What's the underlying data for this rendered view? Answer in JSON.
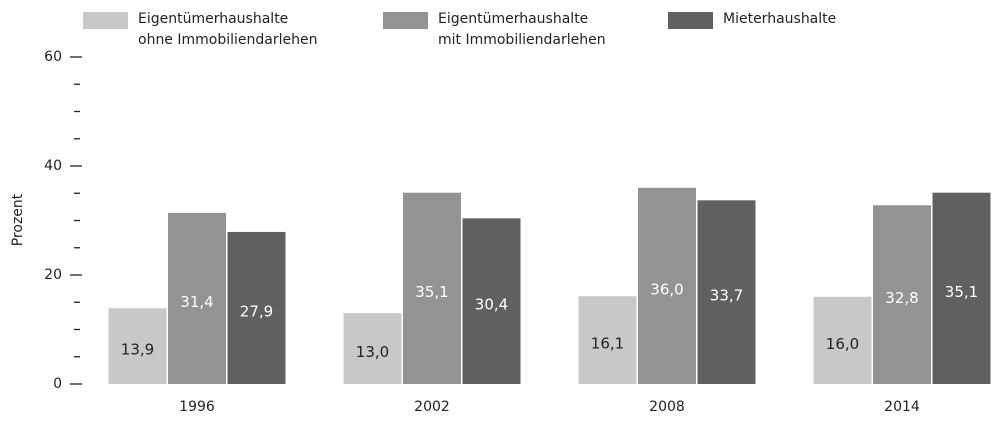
{
  "chart_data": {
    "type": "bar",
    "y_label": "Prozent",
    "categories": [
      "1996",
      "2002",
      "2008",
      "2014"
    ],
    "series": [
      {
        "name": "Eigentümerhaushalte\nohne Immobiliendarlehen",
        "color": "#c8c8c8",
        "values": [
          13.9,
          13.0,
          16.1,
          16.0
        ],
        "value_labels": [
          "13,9",
          "13,0",
          "16,1",
          "16,0"
        ]
      },
      {
        "name": "Eigentümerhaushalte\nmit Immobiliendarlehen",
        "color": "#939393",
        "values": [
          31.4,
          35.1,
          36.0,
          32.8
        ],
        "value_labels": [
          "31,4",
          "35,1",
          "36,0",
          "32,8"
        ]
      },
      {
        "name": "Mieterhaushalte",
        "color": "#606060",
        "values": [
          27.9,
          30.4,
          33.7,
          35.1
        ],
        "value_labels": [
          "27,9",
          "30,4",
          "33,7",
          "35,1"
        ]
      }
    ],
    "ylim": [
      0,
      60
    ],
    "yticks": [
      0,
      20,
      40,
      60
    ],
    "yticks_minor": [
      5,
      10,
      15,
      25,
      30,
      35,
      45,
      50,
      55
    ],
    "grid": false
  }
}
